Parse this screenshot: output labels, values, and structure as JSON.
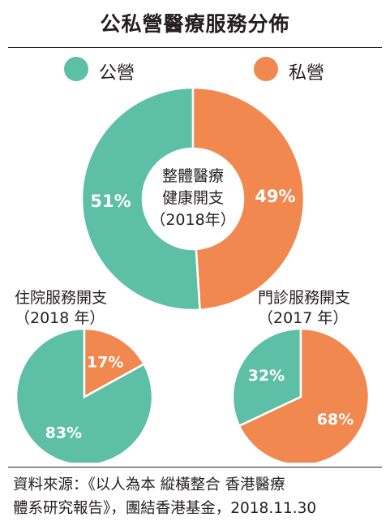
{
  "title": "公私營醫療服務分佈",
  "legend": [
    {
      "label": "公營",
      "color": "#5cbfa6"
    },
    {
      "label": "私營",
      "color": "#f08850"
    }
  ],
  "colors": {
    "public": "#5cbfa6",
    "private": "#f08850"
  },
  "chart_data": [
    {
      "type": "pie",
      "donut": true,
      "center_text": [
        "整體醫療",
        "健康開支",
        "（2018年）"
      ],
      "categories": [
        "公營",
        "私營"
      ],
      "values": [
        51,
        49
      ],
      "value_labels": [
        "51%",
        "49%"
      ]
    },
    {
      "type": "pie",
      "title_lines": [
        "住院服務開支",
        "（2018 年）"
      ],
      "categories": [
        "公營",
        "私營"
      ],
      "values": [
        83,
        17
      ],
      "value_labels": [
        "83%",
        "17%"
      ]
    },
    {
      "type": "pie",
      "title_lines": [
        "門診服務開支",
        "（2017 年）"
      ],
      "categories": [
        "公營",
        "私營"
      ],
      "values": [
        32,
        68
      ],
      "value_labels": [
        "32%",
        "68%"
      ]
    }
  ],
  "source": {
    "line1": "資料來源：《以人為本 縱橫整合 香港醫療",
    "line2": "體系研究報告》，團結香港基金，2018.11.30"
  }
}
